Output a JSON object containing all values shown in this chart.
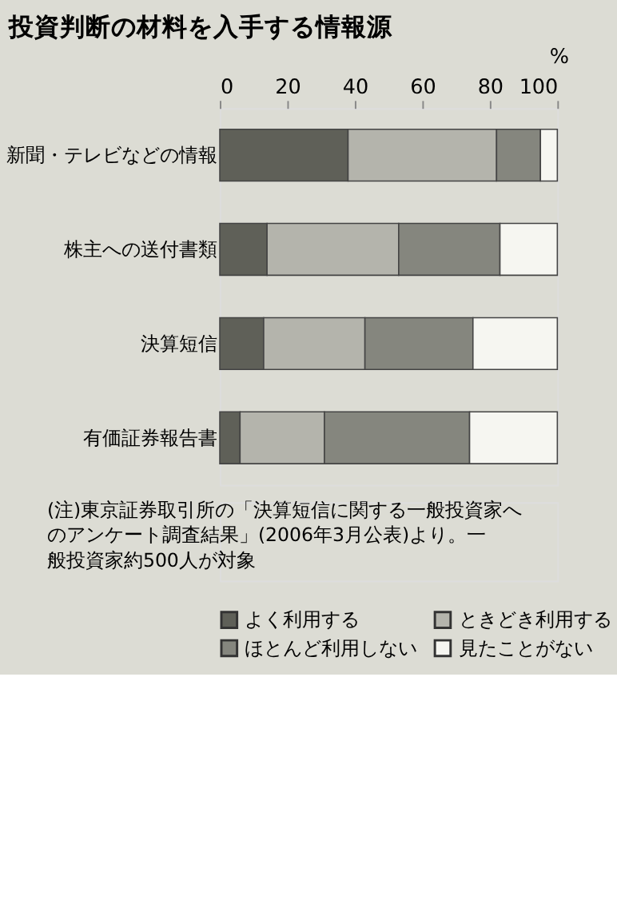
{
  "chart_data": {
    "type": "bar",
    "orientation": "horizontal",
    "stacked": true,
    "title": "投資判断の材料を入手する情報源",
    "xlabel": "%",
    "categories": [
      "新聞・テレビなどの情報",
      "株主への送付書類",
      "決算短信",
      "有価証券報告書"
    ],
    "series": [
      {
        "name": "よく利用する",
        "color": "#5f6058",
        "values": [
          38,
          14,
          13,
          6
        ]
      },
      {
        "name": "ときどき利用する",
        "color": "#b4b4ac",
        "values": [
          44,
          39,
          30,
          25
        ]
      },
      {
        "name": "ほとんど利用しない",
        "color": "#85867e",
        "values": [
          13,
          30,
          32,
          43
        ]
      },
      {
        "name": "見たことがない",
        "color": "#f6f6f1",
        "values": [
          5,
          17,
          25,
          26
        ]
      }
    ],
    "xlim": [
      0,
      100
    ],
    "xticks": [
      0,
      20,
      40,
      60,
      80,
      100
    ],
    "grid": false,
    "legend": "bottom",
    "annotations": [
      "(注)東京証券取引所の「決算短信に関する一般投資家へのアンケート調査結果」(2006年3月公表)より。一般投資家約500人が対象"
    ]
  }
}
